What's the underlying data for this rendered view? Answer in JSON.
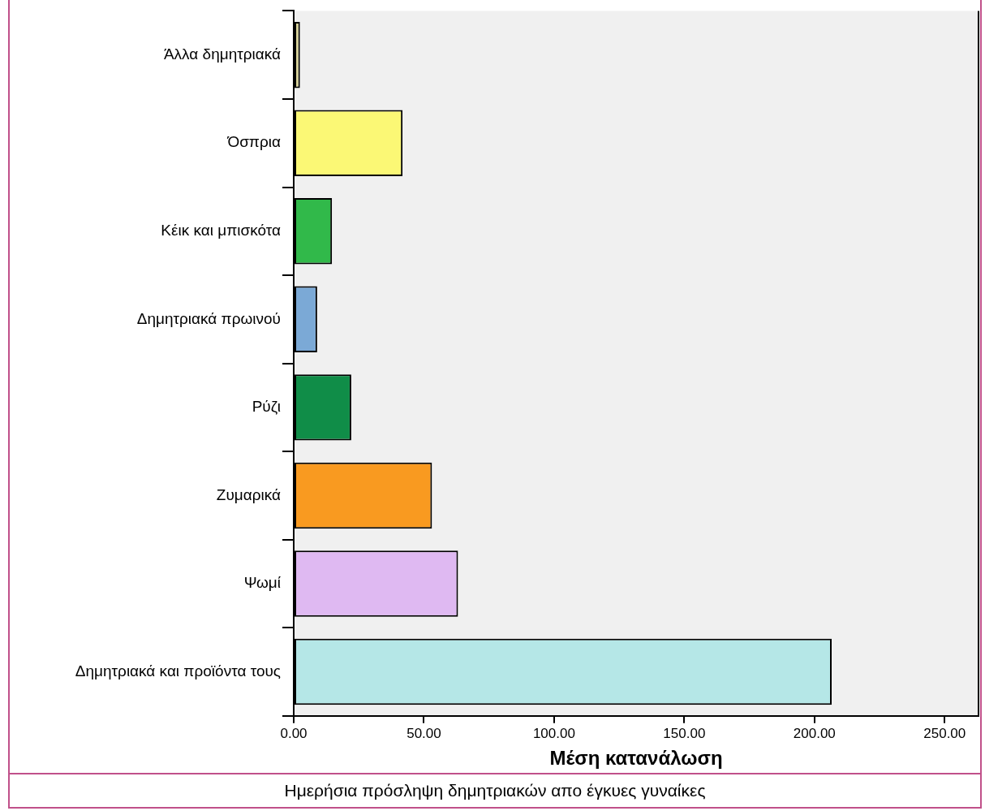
{
  "chart_data": {
    "type": "bar",
    "orientation": "horizontal",
    "title": "Ημερήσια πρόσληψη δημητριακών απο έγκυες γυναίκες",
    "xlabel": "Μέση κατανάλωση",
    "categories": [
      "Άλλα δημητριακά",
      "Όσπρια",
      "Κέικ και μπισκότα",
      "Δημητριακά πρωινού",
      "Ρύζι",
      "Ζυμαρικά",
      "Ψωμί",
      "Δημητριακά και προϊόντα τους"
    ],
    "values": [
      2.4,
      41.8,
      14.7,
      9.0,
      22.1,
      53.1,
      63.1,
      206.6
    ],
    "colors": [
      "#d4cf96",
      "#fbf875",
      "#31b94a",
      "#7ba9d6",
      "#108d48",
      "#f99a20",
      "#dfb9f2",
      "#b5e7e7"
    ],
    "xlim": [
      0,
      263
    ],
    "xticks": [
      {
        "value": 0,
        "label": "0.00"
      },
      {
        "value": 50,
        "label": "50.00"
      },
      {
        "value": 100,
        "label": "100.00"
      },
      {
        "value": 150,
        "label": "150.00"
      },
      {
        "value": 200,
        "label": "200.00"
      },
      {
        "value": 250,
        "label": "250.00"
      }
    ]
  }
}
